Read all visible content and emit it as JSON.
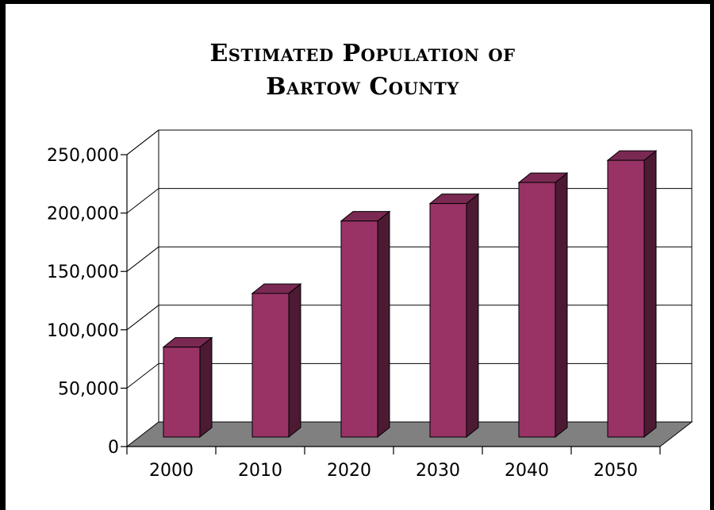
{
  "chart_data": {
    "type": "bar",
    "title_lines": [
      "Estimated Population of",
      "Bartow County"
    ],
    "categories": [
      "2000",
      "2010",
      "2020",
      "2030",
      "2040",
      "2050"
    ],
    "values": [
      77000,
      123000,
      185000,
      200000,
      218000,
      237000
    ],
    "yticks": [
      "0",
      "50,000",
      "100,000",
      "150,000",
      "200,000",
      "250,000"
    ],
    "ylim": [
      0,
      250000
    ],
    "grid": true,
    "legend": "none",
    "colors": {
      "bar_front": "#993366",
      "bar_side": "#4d1a33",
      "bar_top": "#7a2952",
      "floor": "#808080",
      "gridline": "#000000"
    }
  }
}
